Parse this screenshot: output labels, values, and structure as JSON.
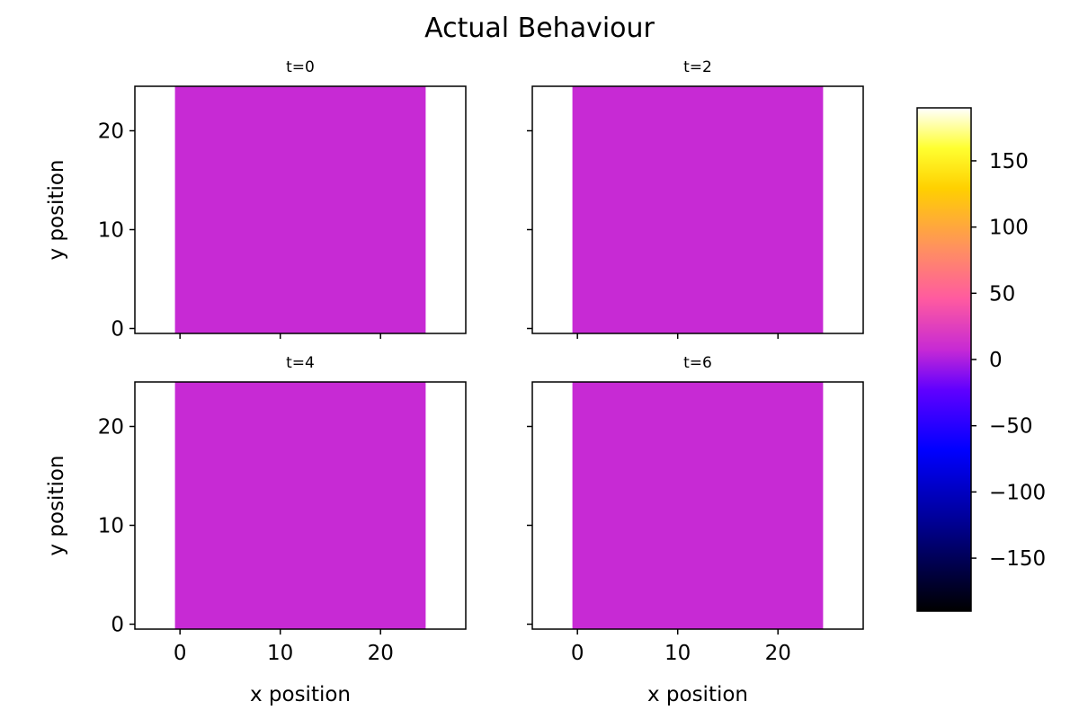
{
  "chart_data": {
    "type": "heatmap",
    "title": "Actual Behaviour",
    "colormap": "gnuplot2",
    "colorbar": {
      "range": [
        -190,
        190
      ],
      "ticks": [
        150,
        100,
        50,
        0,
        -50,
        -100,
        -150
      ],
      "tick_labels": [
        "150",
        "100",
        "50",
        "0",
        "−50",
        "−100",
        "−150"
      ]
    },
    "fill_color": "#c72ad4",
    "grid": false,
    "panels": [
      {
        "title": "t=0",
        "xlabel": "",
        "ylabel": "y position",
        "xlim": [
          -4.5,
          28.5
        ],
        "ylim": [
          -0.5,
          24.5
        ],
        "data_extent": [
          -0.5,
          24.5,
          -0.5,
          24.5
        ],
        "value": 0,
        "xticks": [
          0,
          10,
          20
        ],
        "xtick_labels": [],
        "yticks": [
          0,
          10,
          20
        ],
        "ytick_labels": [
          "0",
          "10",
          "20"
        ]
      },
      {
        "title": "t=2",
        "xlabel": "",
        "ylabel": "",
        "xlim": [
          -4.5,
          28.5
        ],
        "ylim": [
          -0.5,
          24.5
        ],
        "data_extent": [
          -0.5,
          24.5,
          -0.5,
          24.5
        ],
        "value": 0,
        "xticks": [
          0,
          10,
          20
        ],
        "xtick_labels": [],
        "yticks": [
          0,
          10,
          20
        ],
        "ytick_labels": []
      },
      {
        "title": "t=4",
        "xlabel": "x position",
        "ylabel": "y position",
        "xlim": [
          -4.5,
          28.5
        ],
        "ylim": [
          -0.5,
          24.5
        ],
        "data_extent": [
          -0.5,
          24.5,
          -0.5,
          24.5
        ],
        "value": 0,
        "xticks": [
          0,
          10,
          20
        ],
        "xtick_labels": [
          "0",
          "10",
          "20"
        ],
        "yticks": [
          0,
          10,
          20
        ],
        "ytick_labels": [
          "0",
          "10",
          "20"
        ]
      },
      {
        "title": "t=6",
        "xlabel": "x position",
        "ylabel": "",
        "xlim": [
          -4.5,
          28.5
        ],
        "ylim": [
          -0.5,
          24.5
        ],
        "data_extent": [
          -0.5,
          24.5,
          -0.5,
          24.5
        ],
        "value": 0,
        "xticks": [
          0,
          10,
          20
        ],
        "xtick_labels": [
          "0",
          "10",
          "20"
        ],
        "yticks": [
          0,
          10,
          20
        ],
        "ytick_labels": []
      }
    ]
  }
}
